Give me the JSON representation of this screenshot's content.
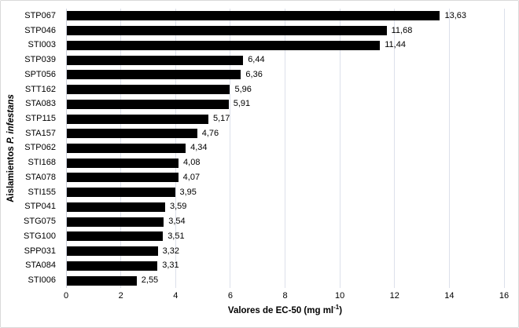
{
  "figure": {
    "y_axis_title_regular": "Aislamientos ",
    "y_axis_title_italic": "P. infestans",
    "x_axis_title_main": "Valores de EC-50 (mg ml",
    "x_axis_title_sup": "-1",
    "x_axis_title_end": ")"
  },
  "chart_data": {
    "type": "bar",
    "orientation": "horizontal",
    "title": "",
    "xlabel": "Valores de EC-50 (mg ml-1)",
    "ylabel": "Aislamientos P. infestans",
    "categories": [
      "STP067",
      "STP046",
      "STI003",
      "STP039",
      "SPT056",
      "STT162",
      "STA083",
      "STP115",
      "STA157",
      "STP062",
      "STI168",
      "STA078",
      "STI155",
      "STP041",
      "STG075",
      "STG100",
      "SPP031",
      "STA084",
      "STI006"
    ],
    "values": [
      13.63,
      11.68,
      11.44,
      6.44,
      6.36,
      5.96,
      5.91,
      5.17,
      4.76,
      4.34,
      4.08,
      4.07,
      3.95,
      3.59,
      3.54,
      3.51,
      3.32,
      3.31,
      2.55
    ],
    "value_labels": [
      "13,63",
      "11,68",
      "11,44",
      "6,44",
      "6,36",
      "5,96",
      "5,91",
      "5,17",
      "4,76",
      "4,34",
      "4,08",
      "4,07",
      "3,95",
      "3,59",
      "3,54",
      "3,51",
      "3,32",
      "3,31",
      "2,55"
    ],
    "xlim": [
      0,
      16
    ],
    "xticks": [
      0,
      2,
      4,
      6,
      8,
      10,
      12,
      14,
      16
    ],
    "grid": true,
    "legend": "none",
    "bar_color": "#000000",
    "gridline_color": "#dce0eb",
    "background_color": "#ffffff"
  }
}
